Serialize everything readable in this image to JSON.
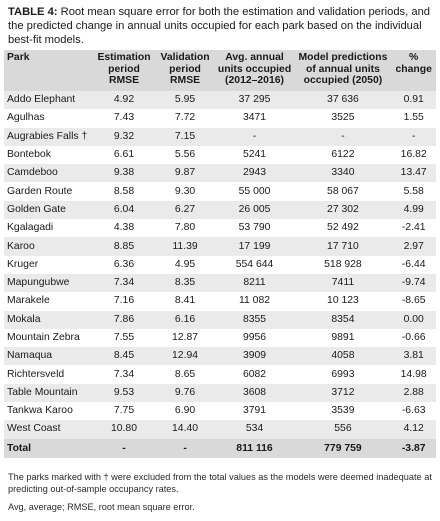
{
  "caption": {
    "label": "TABLE 4:",
    "text": " Root mean square error for both the estimation and validation periods, and the predicted change in annual units occupied for each park based on the individual best-fit models."
  },
  "headers": {
    "park": "Park",
    "est": "Estimation period RMSE",
    "val": "Validation period RMSE",
    "avg": "Avg. annual units occupied (2012–2016)",
    "pred": "Model predictions of annual units occupied (2050)",
    "chg": "% change"
  },
  "rows": [
    {
      "park": "Addo Elephant",
      "est": "4.92",
      "val": "5.95",
      "avg": "37 295",
      "pred": "37 636",
      "chg": "0.91"
    },
    {
      "park": "Agulhas",
      "est": "7.43",
      "val": "7.72",
      "avg": "3471",
      "pred": "3525",
      "chg": "1.55"
    },
    {
      "park": "Augrabies Falls †",
      "est": "9.32",
      "val": "7.15",
      "avg": "-",
      "pred": "-",
      "chg": "-"
    },
    {
      "park": "Bontebok",
      "est": "6.61",
      "val": "5.56",
      "avg": "5241",
      "pred": "6122",
      "chg": "16.82"
    },
    {
      "park": "Camdeboo",
      "est": "9.38",
      "val": "9.87",
      "avg": "2943",
      "pred": "3340",
      "chg": "13.47"
    },
    {
      "park": "Garden Route",
      "est": "8.58",
      "val": "9.30",
      "avg": "55 000",
      "pred": "58 067",
      "chg": "5.58"
    },
    {
      "park": "Golden Gate",
      "est": "6.04",
      "val": "6.27",
      "avg": "26 005",
      "pred": "27 302",
      "chg": "4.99"
    },
    {
      "park": "Kgalagadi",
      "est": "4.38",
      "val": "7.80",
      "avg": "53 790",
      "pred": "52 492",
      "chg": "-2.41"
    },
    {
      "park": "Karoo",
      "est": "8.85",
      "val": "11.39",
      "avg": "17 199",
      "pred": "17 710",
      "chg": "2.97"
    },
    {
      "park": "Kruger",
      "est": "6.36",
      "val": "4.95",
      "avg": "554 644",
      "pred": "518 928",
      "chg": "-6.44"
    },
    {
      "park": "Mapungubwe",
      "est": "7.34",
      "val": "8.35",
      "avg": "8211",
      "pred": "7411",
      "chg": "-9.74"
    },
    {
      "park": "Marakele",
      "est": "7.16",
      "val": "8.41",
      "avg": "11 082",
      "pred": "10 123",
      "chg": "-8.65"
    },
    {
      "park": "Mokala",
      "est": "7.86",
      "val": "6.16",
      "avg": "8355",
      "pred": "8354",
      "chg": "0.00"
    },
    {
      "park": "Mountain Zebra",
      "est": "7.55",
      "val": "12.87",
      "avg": "9956",
      "pred": "9891",
      "chg": "-0.66"
    },
    {
      "park": "Namaqua",
      "est": "8.45",
      "val": "12.94",
      "avg": "3909",
      "pred": "4058",
      "chg": "3.81"
    },
    {
      "park": "Richtersveld",
      "est": "7.34",
      "val": "8.65",
      "avg": "6082",
      "pred": "6993",
      "chg": "14.98"
    },
    {
      "park": "Table Mountain",
      "est": "9.53",
      "val": "9.76",
      "avg": "3608",
      "pred": "3712",
      "chg": "2.88"
    },
    {
      "park": "Tankwa Karoo",
      "est": "7.75",
      "val": "6.90",
      "avg": "3791",
      "pred": "3539",
      "chg": "-6.63"
    },
    {
      "park": "West Coast",
      "est": "10.80",
      "val": "14.40",
      "avg": "534",
      "pred": "556",
      "chg": "4.12"
    }
  ],
  "total": {
    "park": "Total",
    "est": "-",
    "val": "-",
    "avg": "811 116",
    "pred": "779 759",
    "chg": "-3.87"
  },
  "footnotes": [
    "The parks marked with † were excluded from the total values as the models were deemed inadequate at predicting out-of-sample occupancy rates.",
    "Avg, average; RMSE, root mean square error."
  ]
}
